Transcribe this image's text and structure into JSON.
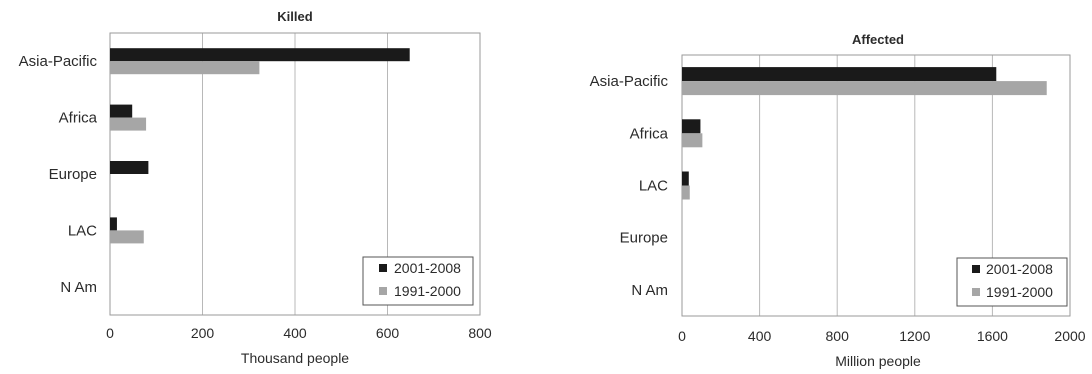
{
  "chart_data": [
    {
      "type": "bar",
      "orientation": "horizontal",
      "title": "Killed",
      "xlabel": "Thousand people",
      "categories": [
        "Asia-Pacific",
        "Africa",
        "Europe",
        "LAC",
        "N Am"
      ],
      "series": [
        {
          "name": "2001-2008",
          "values": [
            648,
            48,
            83,
            15,
            0
          ],
          "color": "#1a1a1a"
        },
        {
          "name": "1991-2000",
          "values": [
            323,
            78,
            0,
            73,
            0
          ],
          "color": "#a6a6a6"
        }
      ],
      "xlim": [
        0,
        800
      ],
      "xticks": [
        0,
        200,
        400,
        600,
        800
      ],
      "grid": true,
      "legend": "bottom-right"
    },
    {
      "type": "bar",
      "orientation": "horizontal",
      "title": "Affected",
      "xlabel": "Million people",
      "categories": [
        "Asia-Pacific",
        "Africa",
        "LAC",
        "Europe",
        "N Am"
      ],
      "series": [
        {
          "name": "2001-2008",
          "values": [
            1620,
            95,
            35,
            0,
            0
          ],
          "color": "#1a1a1a"
        },
        {
          "name": "1991-2000",
          "values": [
            1880,
            105,
            40,
            0,
            0
          ],
          "color": "#a6a6a6"
        }
      ],
      "xlim": [
        0,
        2000
      ],
      "xticks": [
        0,
        400,
        800,
        1200,
        1600,
        2000
      ],
      "grid": true,
      "legend": "bottom-right"
    }
  ]
}
